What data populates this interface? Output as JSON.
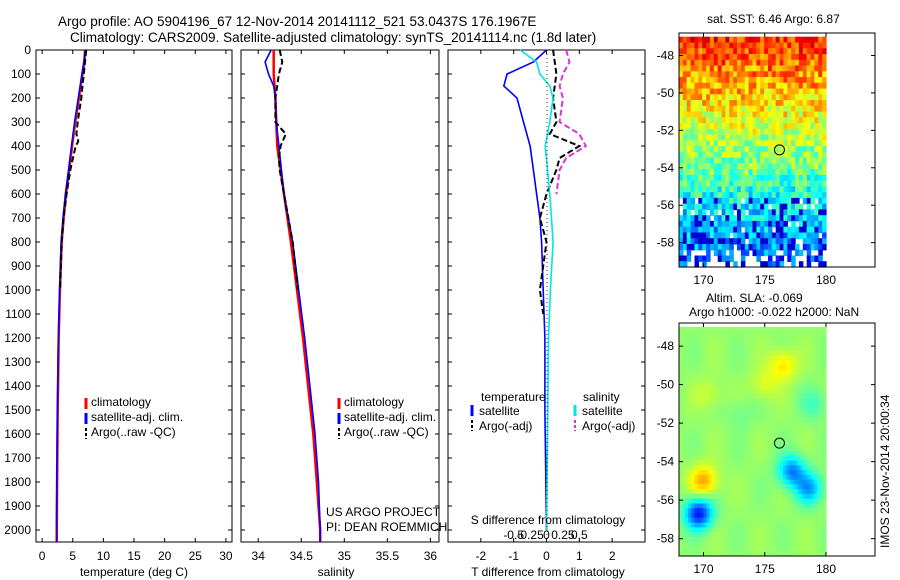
{
  "title_line1": "Argo profile: AO 5904196_67 12-Nov-2014 20141112_521 53.0437S 176.1967E",
  "title_line2": "Climatology: CARS2009. Satellite-adjusted climatology: synTS_20141114.nc (1.8d later)",
  "colors": {
    "clim": "#ff0000",
    "sat": "#0000ff",
    "argo": "#000000",
    "sal_sat": "#00e5e5",
    "sal_argo": "#dd33dd"
  },
  "chart_data": [
    {
      "type": "line",
      "xlabel": "temperature (deg C)",
      "xlim": [
        -1,
        31
      ],
      "xticks": [
        0,
        5,
        10,
        15,
        20,
        25,
        30
      ],
      "ylim": [
        0,
        2050
      ],
      "yticks": [
        0,
        100,
        200,
        300,
        400,
        500,
        600,
        700,
        800,
        900,
        1000,
        1100,
        1200,
        1300,
        1400,
        1500,
        1600,
        1700,
        1800,
        1900,
        2000
      ],
      "y_reversed": true,
      "legend": [
        "climatology",
        "satellite-adj. clim.",
        "Argo(..raw -QC)"
      ],
      "series": [
        {
          "key": "clim",
          "depth": [
            0,
            50,
            100,
            200,
            300,
            400,
            500,
            600,
            700,
            800,
            1000,
            1200,
            1500,
            1800,
            2000,
            2050
          ],
          "values": [
            7.0,
            6.9,
            6.6,
            6.0,
            5.4,
            4.9,
            4.4,
            3.9,
            3.5,
            3.2,
            2.9,
            2.7,
            2.55,
            2.45,
            2.4,
            2.4
          ]
        },
        {
          "key": "sat",
          "depth": [
            0,
            50,
            100,
            200,
            300,
            400,
            500,
            600,
            700,
            800,
            1000,
            1200,
            1500,
            1800,
            2000,
            2050
          ],
          "values": [
            7.05,
            6.8,
            6.5,
            5.9,
            5.3,
            4.8,
            4.3,
            3.8,
            3.4,
            3.1,
            2.85,
            2.65,
            2.5,
            2.4,
            2.35,
            2.35
          ]
        },
        {
          "key": "argo",
          "depth": [
            0,
            50,
            100,
            150,
            200,
            250,
            300,
            350,
            380,
            400,
            430,
            500,
            600,
            700,
            800,
            900,
            1000
          ],
          "values": [
            7.2,
            7.0,
            6.8,
            6.6,
            6.4,
            6.1,
            5.8,
            5.6,
            5.9,
            5.5,
            5.2,
            4.6,
            4.0,
            3.5,
            3.2,
            3.05,
            2.95
          ]
        }
      ]
    },
    {
      "type": "line",
      "xlabel": "salinity",
      "xlim": [
        33.8,
        36.1
      ],
      "xticks": [
        34,
        34.5,
        35,
        35.5,
        36
      ],
      "xtick_labels": [
        "34",
        "34.5",
        "35",
        "35.5",
        "36"
      ],
      "ylim": [
        0,
        2050
      ],
      "y_reversed": true,
      "legend": [
        "climatology",
        "satellite-adj. clim.",
        "Argo(..raw -QC)"
      ],
      "annotation": [
        "US ARGO PROJECT",
        "PI: DEAN ROEMMICH"
      ],
      "series": [
        {
          "key": "clim",
          "depth": [
            0,
            100,
            200,
            400,
            600,
            800,
            1000,
            1200,
            1400,
            1600,
            1800,
            2000,
            2050
          ],
          "values": [
            34.18,
            34.18,
            34.2,
            34.22,
            34.3,
            34.38,
            34.45,
            34.52,
            34.58,
            34.64,
            34.68,
            34.72,
            34.72
          ]
        },
        {
          "key": "sat",
          "depth": [
            0,
            50,
            100,
            150,
            200,
            300,
            400,
            600,
            800,
            1000,
            1200,
            1400,
            1600,
            1800,
            2000,
            2050
          ],
          "values": [
            34.15,
            34.08,
            34.12,
            34.18,
            34.2,
            34.21,
            34.24,
            34.3,
            34.4,
            34.47,
            34.54,
            34.6,
            34.66,
            34.7,
            34.72,
            34.72
          ]
        },
        {
          "key": "argo",
          "depth": [
            0,
            50,
            100,
            150,
            200,
            250,
            300,
            350,
            400,
            450,
            500,
            600,
            800,
            1000
          ],
          "values": [
            34.25,
            34.28,
            34.24,
            34.22,
            34.2,
            34.2,
            34.2,
            34.32,
            34.26,
            34.24,
            34.25,
            34.3,
            34.4,
            34.46
          ]
        }
      ]
    },
    {
      "type": "line",
      "xlabel": "T difference from climatology",
      "top_xlabel": "S difference from climatology",
      "xlim": [
        -3,
        3
      ],
      "xticks": [
        -2,
        -1,
        0,
        1,
        2
      ],
      "top_xticks": [
        -0.5,
        -0.25,
        0,
        0.25,
        0.5
      ],
      "top_xtick_labels": [
        "-0.5",
        "-0.25",
        "0",
        "0.25",
        "0.5"
      ],
      "ylim": [
        0,
        2050
      ],
      "y_reversed": true,
      "legend_groups": [
        {
          "title": "temperature",
          "items": [
            "satellite",
            "Argo(-adj)"
          ]
        },
        {
          "title": "salinity",
          "items": [
            "satellite",
            "Argo(-adj)"
          ]
        }
      ],
      "series": [
        {
          "key": "sat",
          "group": "temperature",
          "depth": [
            0,
            50,
            100,
            150,
            200,
            300,
            400,
            500,
            600,
            700,
            800,
            1000,
            1200,
            1500,
            2000
          ],
          "values": [
            0.0,
            -0.4,
            -1.2,
            -1.3,
            -0.9,
            -0.7,
            -0.5,
            -0.4,
            -0.3,
            -0.2,
            -0.15,
            -0.1,
            -0.05,
            -0.05,
            0.0
          ]
        },
        {
          "key": "argo",
          "group": "temperature",
          "depth": [
            0,
            100,
            200,
            300,
            350,
            400,
            450,
            500,
            600,
            700,
            800,
            900,
            1000,
            1100
          ],
          "values": [
            0.2,
            0.3,
            0.2,
            0.3,
            0.1,
            1.0,
            0.4,
            0.3,
            0.0,
            -0.2,
            0.0,
            -0.1,
            -0.2,
            -0.1
          ]
        },
        {
          "key": "sal_sat",
          "group": "salinity",
          "depth": [
            0,
            50,
            100,
            150,
            200,
            300,
            400,
            600,
            800,
            1000,
            1200,
            1500,
            2000
          ],
          "values": [
            -0.4,
            -0.15,
            -0.1,
            0.05,
            0.1,
            0.05,
            -0.02,
            0.05,
            0.1,
            0.06,
            0.03,
            0.02,
            0.0
          ]
        },
        {
          "key": "sal_argo",
          "group": "salinity",
          "depth": [
            0,
            50,
            100,
            150,
            200,
            300,
            350,
            400,
            450,
            500,
            600
          ],
          "values": [
            0.3,
            0.35,
            0.25,
            0.2,
            0.25,
            0.2,
            0.5,
            0.6,
            0.3,
            0.2,
            0.15
          ]
        }
      ]
    },
    {
      "type": "heatmap",
      "title": "sat. SST: 6.46  Argo: 6.87",
      "xlim": [
        168,
        184
      ],
      "ylim": [
        -59.3,
        -46.8
      ],
      "xticks": [
        170,
        175,
        180
      ],
      "yticks": [
        -48,
        -50,
        -52,
        -54,
        -56,
        -58
      ],
      "data_extent": {
        "lon": [
          168,
          180
        ],
        "lat": [
          -59.3,
          -47
        ]
      },
      "marker": {
        "lon": 176.2,
        "lat": -53.04
      }
    },
    {
      "type": "heatmap",
      "title_line1": "Altim. SLA: -0.069",
      "title_line2": "Argo h1000: -0.022 h2000: NaN",
      "xlim": [
        168,
        184
      ],
      "ylim": [
        -58.9,
        -46.8
      ],
      "xticks": [
        170,
        175,
        180
      ],
      "yticks": [
        -48,
        -50,
        -52,
        -54,
        -56,
        -58
      ],
      "data_extent": {
        "lon": [
          168,
          180
        ],
        "lat": [
          -58.9,
          -47
        ]
      },
      "marker": {
        "lon": 176.2,
        "lat": -53.04
      },
      "blobs": [
        {
          "lon": 169.6,
          "lat": -56.7,
          "value": -1.0
        },
        {
          "lon": 170.0,
          "lat": -55.0,
          "value": 0.5
        },
        {
          "lon": 170.4,
          "lat": -50.5,
          "value": 0.15
        },
        {
          "lon": 173.0,
          "lat": -51.5,
          "value": -0.1
        },
        {
          "lon": 177.2,
          "lat": -54.5,
          "value": -0.7
        },
        {
          "lon": 178.6,
          "lat": -55.4,
          "value": -0.6
        },
        {
          "lon": 176.5,
          "lat": -49.0,
          "value": 0.35
        },
        {
          "lon": 175.0,
          "lat": -50.0,
          "value": 0.2
        },
        {
          "lon": 179.0,
          "lat": -51.0,
          "value": -0.2
        }
      ]
    }
  ],
  "side_label": "IMOS 23-Nov-2014 20:00:34"
}
